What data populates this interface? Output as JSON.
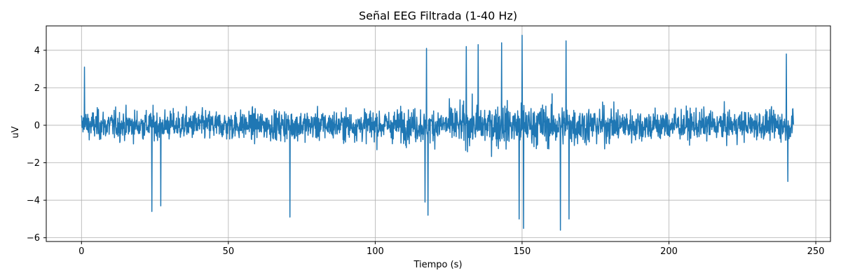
{
  "chart_data": {
    "type": "line",
    "title": "Señal EEG Filtrada (1-40 Hz)",
    "xlabel": "Tiempo (s)",
    "ylabel": "uV",
    "xlim": [
      -12,
      255
    ],
    "ylim": [
      -6.2,
      5.3
    ],
    "x_ticks": [
      0,
      50,
      100,
      150,
      200,
      250
    ],
    "y_ticks": [
      -6,
      -4,
      -2,
      0,
      2,
      4
    ],
    "x_tick_labels": [
      "0",
      "50",
      "100",
      "150",
      "200",
      "250"
    ],
    "y_tick_labels": [
      "−6",
      "−4",
      "−2",
      "0",
      "2",
      "4"
    ],
    "grid": true,
    "legend": "none",
    "series": [
      {
        "color": "#1f77b4",
        "x_range": [
          0,
          242.5
        ],
        "points_sampled": 2400,
        "typical_amplitude": 1.5,
        "peaks": [
          {
            "x": 1.0,
            "y": 3.1
          },
          {
            "x": 24.0,
            "y": -4.6
          },
          {
            "x": 27.0,
            "y": -4.3
          },
          {
            "x": 71.0,
            "y": -4.9
          },
          {
            "x": 117.0,
            "y": -4.1
          },
          {
            "x": 118.0,
            "y": -4.8
          },
          {
            "x": 117.5,
            "y": 4.1
          },
          {
            "x": 131.0,
            "y": 4.2
          },
          {
            "x": 135.0,
            "y": 4.3
          },
          {
            "x": 143.0,
            "y": 4.4
          },
          {
            "x": 149.0,
            "y": -5.0
          },
          {
            "x": 150.0,
            "y": 4.8
          },
          {
            "x": 150.5,
            "y": -5.5
          },
          {
            "x": 163.0,
            "y": -5.6
          },
          {
            "x": 165.0,
            "y": 4.5
          },
          {
            "x": 166.0,
            "y": -5.0
          },
          {
            "x": 240.0,
            "y": 3.8
          },
          {
            "x": 240.5,
            "y": -3.0
          }
        ]
      }
    ]
  }
}
